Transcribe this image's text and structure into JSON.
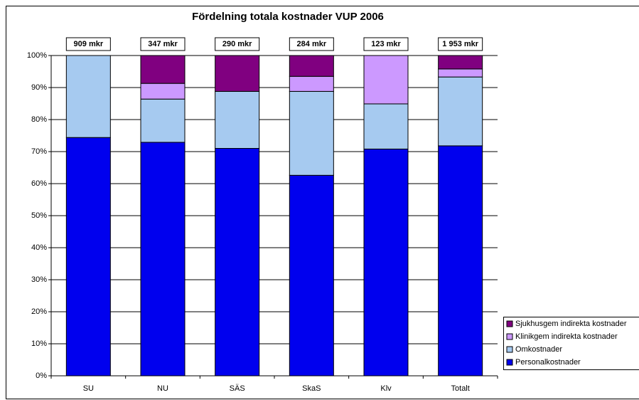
{
  "chart_data": {
    "type": "stacked_bar_100",
    "title": "Fördelning totala kostnader VUP 2006",
    "categories": [
      "SU",
      "NU",
      "SÄS",
      "SkaS",
      "Klv",
      "Totalt"
    ],
    "bar_labels": [
      "909 mkr",
      "347 mkr",
      "290 mkr",
      "284 mkr",
      "123 mkr",
      "1 953 mkr"
    ],
    "series": [
      {
        "name": "Personalkostnader",
        "color": "#0000ee",
        "values": [
          74.4,
          72.9,
          71.0,
          62.6,
          70.8,
          71.8
        ]
      },
      {
        "name": "Omkostnader",
        "color": "#a6caf0",
        "values": [
          25.6,
          13.5,
          17.8,
          26.2,
          14.1,
          21.5
        ]
      },
      {
        "name": "Klinikgem indirekta kostnader",
        "color": "#cc99ff",
        "values": [
          0,
          4.9,
          0,
          4.7,
          15.1,
          2.5
        ]
      },
      {
        "name": "Sjukhusgem indirekta kostnader",
        "color": "#800080",
        "values": [
          0,
          8.7,
          11.2,
          6.5,
          0,
          4.2
        ]
      }
    ],
    "ylim": [
      0,
      100
    ],
    "yticks": [
      {
        "value": 0,
        "label": "0%"
      },
      {
        "value": 10,
        "label": "10%"
      },
      {
        "value": 20,
        "label": "20%"
      },
      {
        "value": 30,
        "label": "30%"
      },
      {
        "value": 40,
        "label": "40%"
      },
      {
        "value": 50,
        "label": "50%"
      },
      {
        "value": 60,
        "label": "60%"
      },
      {
        "value": 70,
        "label": "70%"
      },
      {
        "value": 80,
        "label": "80%"
      },
      {
        "value": 90,
        "label": "90%"
      },
      {
        "value": 100,
        "label": "100%"
      }
    ],
    "grid": true,
    "legend": "lower right"
  }
}
